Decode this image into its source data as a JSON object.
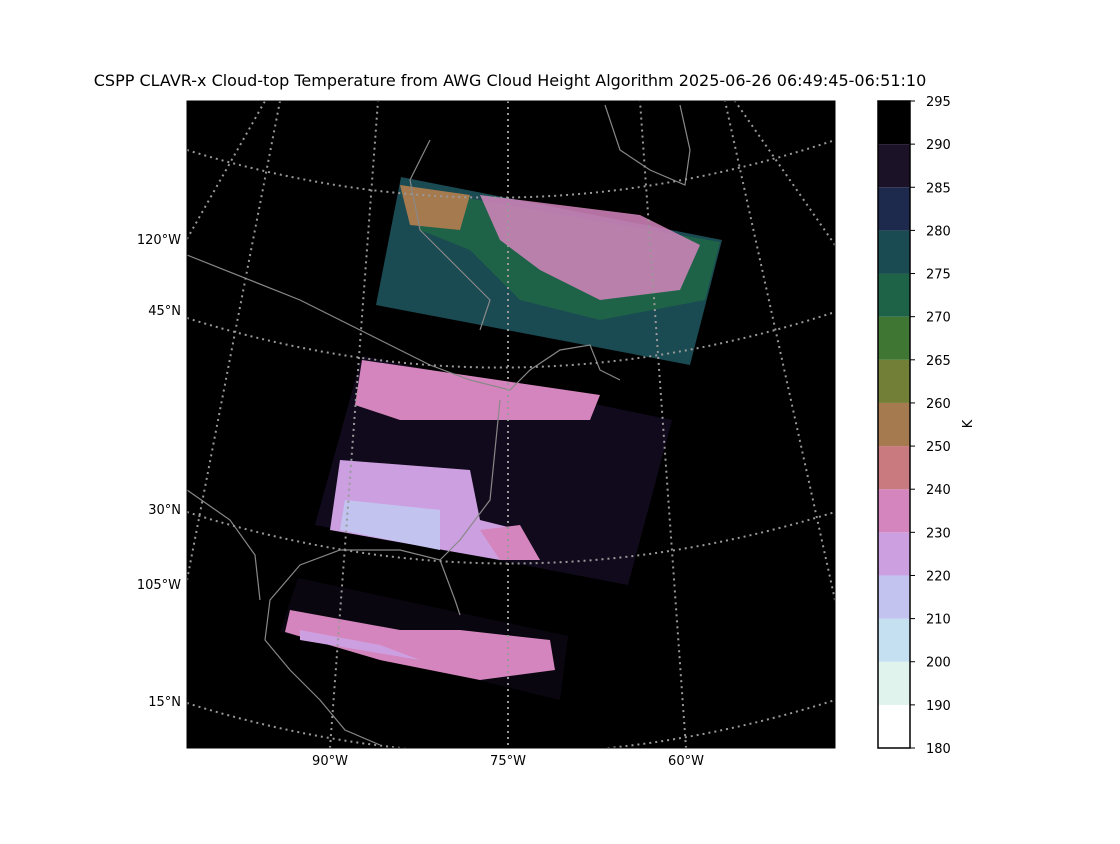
{
  "title": "CSPP CLAVR-x Cloud-top Temperature from AWG Cloud Height Algorithm 2025-06-26 06:49:45-06:51:10",
  "map": {
    "left_labels": [
      "120°W",
      "45°N",
      "30°N",
      "105°W",
      "15°N"
    ],
    "bottom_labels": [
      "90°W",
      "75°W",
      "60°W"
    ]
  },
  "colorbar": {
    "label": "K",
    "ticks": [
      180,
      190,
      200,
      210,
      220,
      230,
      240,
      250,
      260,
      265,
      270,
      275,
      280,
      285,
      290,
      295
    ],
    "colors": [
      "#ffffff",
      "#e0f3ec",
      "#c5e0f0",
      "#c3c3f0",
      "#cca0e0",
      "#d585bd",
      "#c97a7e",
      "#a57a4e",
      "#727f36",
      "#3f7634",
      "#1e6347",
      "#1a4a52",
      "#1d2a4d",
      "#1c1228",
      "#000000"
    ]
  }
}
